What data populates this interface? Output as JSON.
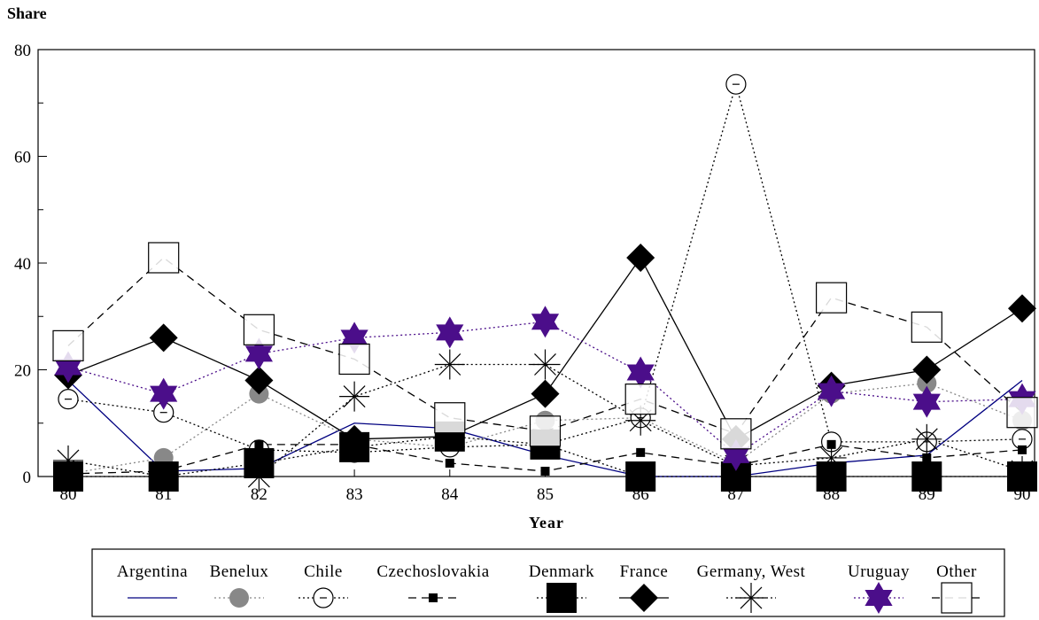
{
  "chart_data": {
    "type": "line",
    "ylabel": "Share",
    "xlabel": "Year",
    "x": [
      "80",
      "81",
      "82",
      "83",
      "84",
      "85",
      "86",
      "87",
      "88",
      "89",
      "90"
    ],
    "ylim": [
      0,
      80
    ],
    "yticks": [
      "0",
      "20",
      "40",
      "60",
      "80"
    ],
    "grid": false,
    "legend_position": "bottom",
    "series": [
      {
        "name": "Argentina",
        "values": [
          18,
          1,
          1.5,
          10,
          9,
          4,
          0,
          0,
          2.5,
          4,
          18
        ],
        "color": "#000080",
        "dash": "none",
        "marker": "none"
      },
      {
        "name": "Benelux",
        "values": [
          0.5,
          3.5,
          15.5,
          7,
          5.5,
          10.5,
          11,
          2.5,
          15.5,
          17.5,
          10.5
        ],
        "color": "#888888",
        "dash": "dot",
        "marker": "circle-filled"
      },
      {
        "name": "Chile",
        "values": [
          14.5,
          12,
          5,
          4.5,
          5.5,
          6,
          11,
          73.5,
          6.5,
          6.5,
          7
        ],
        "color": "#000000",
        "dash": "dot",
        "marker": "circle-open"
      },
      {
        "name": "Czechoslovakia",
        "values": [
          0.5,
          1,
          6,
          6,
          2.5,
          1,
          4.5,
          2,
          6,
          3.5,
          5
        ],
        "color": "#000000",
        "dash": "dash",
        "marker": "square-small"
      },
      {
        "name": "Denmark",
        "values": [
          0,
          0,
          2.5,
          5.5,
          7.5,
          6,
          0,
          0,
          0,
          0,
          0
        ],
        "color": "#000000",
        "dash": "dot",
        "marker": "square-big"
      },
      {
        "name": "France",
        "values": [
          19,
          26,
          18,
          7,
          7.5,
          15.5,
          41,
          7,
          17,
          20,
          31.5
        ],
        "color": "#000000",
        "dash": "none",
        "marker": "diamond"
      },
      {
        "name": "Germany, West",
        "values": [
          3,
          0,
          0,
          15,
          21,
          21,
          10.5,
          2,
          3.5,
          7,
          1
        ],
        "color": "#000000",
        "dash": "dot",
        "marker": "star-burst"
      },
      {
        "name": "Uruguay",
        "values": [
          20.5,
          15.5,
          23,
          26,
          27,
          29,
          19.5,
          4,
          16,
          14,
          14.5
        ],
        "color": "#4b0e8a",
        "dash": "dot",
        "marker": "star-of-david"
      },
      {
        "name": "Other",
        "values": [
          24.5,
          41,
          27.5,
          22,
          11,
          8.5,
          14.5,
          8,
          33.5,
          28,
          12
        ],
        "color": "#000000",
        "dash": "dash",
        "marker": "square-open"
      }
    ]
  }
}
